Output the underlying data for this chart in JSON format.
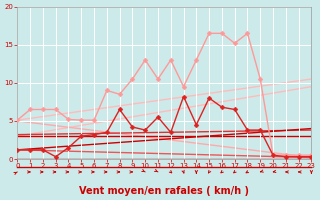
{
  "background_color": "#cceaea",
  "grid_color": "#ffffff",
  "xlabel": "Vent moyen/en rafales ( km/h )",
  "xlabel_color": "#cc0000",
  "xlabel_fontsize": 7,
  "tick_color": "#cc0000",
  "tick_fontsize": 5,
  "xlim": [
    0,
    23
  ],
  "ylim": [
    0,
    20
  ],
  "yticks": [
    0,
    5,
    10,
    15,
    20
  ],
  "xticks": [
    0,
    1,
    2,
    3,
    4,
    5,
    6,
    7,
    8,
    9,
    10,
    11,
    12,
    13,
    14,
    15,
    16,
    17,
    18,
    19,
    20,
    21,
    22,
    23
  ],
  "lines": [
    {
      "x": [
        0,
        1,
        2,
        3,
        4,
        5,
        6,
        7,
        8,
        9,
        10,
        11,
        12,
        13,
        14,
        15,
        16,
        17,
        18,
        19,
        20,
        21,
        22,
        23
      ],
      "y": [
        5.1,
        6.5,
        6.5,
        6.5,
        5.2,
        5.1,
        5.1,
        9.0,
        8.5,
        10.5,
        13.0,
        10.5,
        13.0,
        9.5,
        13.0,
        16.5,
        16.5,
        15.2,
        16.5,
        10.5,
        0.5,
        0.5,
        0.5,
        0.5
      ],
      "color": "#ff9999",
      "lw": 1.0,
      "marker": "D",
      "ms": 2.5,
      "zorder": 3
    },
    {
      "x": [
        0,
        1,
        2,
        3,
        4,
        5,
        6,
        7,
        8,
        9,
        10,
        11,
        12,
        13,
        14,
        15,
        16,
        17,
        18,
        19,
        20,
        21,
        22,
        23
      ],
      "y": [
        1.2,
        1.2,
        1.2,
        0.3,
        1.5,
        3.0,
        3.2,
        3.5,
        6.5,
        4.2,
        3.8,
        5.5,
        3.5,
        8.2,
        4.5,
        8.0,
        6.8,
        6.5,
        3.8,
        3.8,
        0.5,
        0.3,
        0.3,
        0.3
      ],
      "color": "#dd2222",
      "lw": 1.0,
      "marker": "D",
      "ms": 2.5,
      "zorder": 4
    },
    {
      "x": [
        0,
        23
      ],
      "y": [
        5.1,
        10.5
      ],
      "color": "#ffbbbb",
      "lw": 1.0,
      "marker": null,
      "ms": 0,
      "zorder": 1
    },
    {
      "x": [
        0,
        23
      ],
      "y": [
        3.0,
        9.5
      ],
      "color": "#ffbbbb",
      "lw": 1.0,
      "marker": null,
      "ms": 0,
      "zorder": 1
    },
    {
      "x": [
        0,
        23
      ],
      "y": [
        5.0,
        0.2
      ],
      "color": "#ffaaaa",
      "lw": 1.0,
      "marker": null,
      "ms": 0,
      "zorder": 1
    },
    {
      "x": [
        0,
        23
      ],
      "y": [
        3.2,
        3.8
      ],
      "color": "#dd3333",
      "lw": 1.0,
      "marker": null,
      "ms": 0,
      "zorder": 1
    },
    {
      "x": [
        0,
        23
      ],
      "y": [
        3.0,
        3.0
      ],
      "color": "#cc0000",
      "lw": 1.0,
      "marker": null,
      "ms": 0,
      "zorder": 1
    },
    {
      "x": [
        0,
        23
      ],
      "y": [
        1.2,
        4.0
      ],
      "color": "#cc0000",
      "lw": 1.0,
      "marker": null,
      "ms": 0,
      "zorder": 1
    },
    {
      "x": [
        0,
        23
      ],
      "y": [
        1.2,
        0.2
      ],
      "color": "#ee5555",
      "lw": 1.0,
      "marker": null,
      "ms": 0,
      "zorder": 1
    }
  ],
  "arrow_angles": [
    45,
    0,
    0,
    0,
    0,
    0,
    0,
    0,
    0,
    0,
    315,
    315,
    300,
    280,
    270,
    250,
    240,
    240,
    230,
    210,
    200,
    180,
    180,
    270
  ],
  "arrow_color": "#cc0000",
  "hline_y": -0.45,
  "hline_color": "#cc0000"
}
